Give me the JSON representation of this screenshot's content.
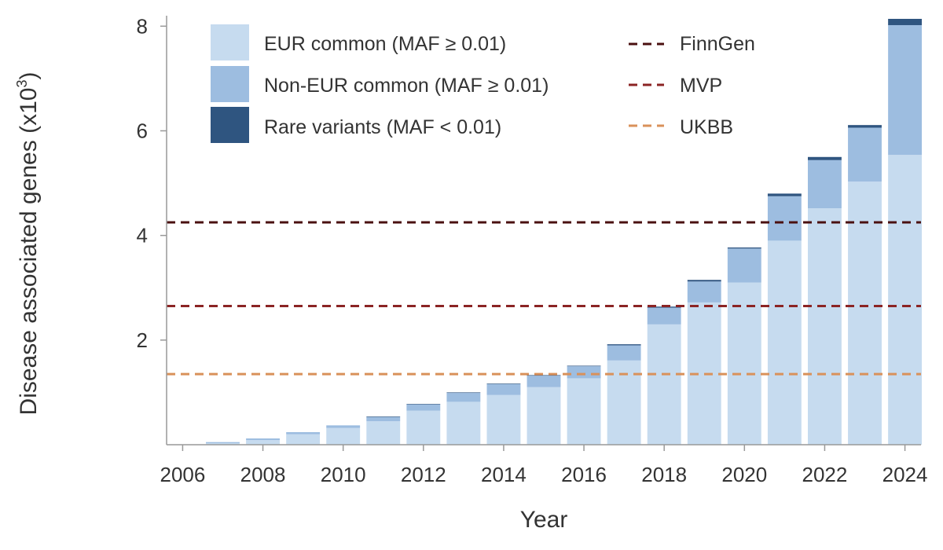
{
  "chart_data": {
    "type": "bar",
    "stacked": true,
    "title": "",
    "xlabel": "Year",
    "ylabel": "Disease associated genes (x10",
    "ylabel_sup": "3",
    "ylabel_close": ")",
    "ylim": [
      0,
      8.2
    ],
    "xlim": [
      2005.6,
      2024.4
    ],
    "x_ticks": [
      "2006",
      "2008",
      "2010",
      "2012",
      "2014",
      "2016",
      "2018",
      "2020",
      "2022",
      "2024"
    ],
    "y_ticks": [
      "2",
      "4",
      "6",
      "8"
    ],
    "categories": [
      2007,
      2008,
      2009,
      2010,
      2011,
      2012,
      2013,
      2014,
      2015,
      2016,
      2017,
      2018,
      2019,
      2020,
      2021,
      2022,
      2023,
      2024
    ],
    "series": [
      {
        "name": "EUR common (MAF ≥ 0.01)",
        "color": "#c6dbef",
        "values": [
          0.03,
          0.09,
          0.2,
          0.32,
          0.45,
          0.65,
          0.82,
          0.95,
          1.1,
          1.27,
          1.61,
          2.3,
          2.72,
          3.1,
          3.9,
          4.52,
          5.03,
          5.54
        ]
      },
      {
        "name": "Non-EUR common (MAF ≥ 0.01)",
        "color": "#9dbde0",
        "values": [
          0.02,
          0.03,
          0.04,
          0.05,
          0.08,
          0.12,
          0.17,
          0.21,
          0.22,
          0.23,
          0.29,
          0.32,
          0.4,
          0.65,
          0.85,
          0.92,
          1.03,
          2.48
        ]
      },
      {
        "name": "Rare variants (MAF < 0.01)",
        "color": "#2f5580",
        "values": [
          0.0,
          0.0,
          0.0,
          0.0,
          0.01,
          0.01,
          0.01,
          0.01,
          0.01,
          0.01,
          0.02,
          0.02,
          0.03,
          0.02,
          0.05,
          0.06,
          0.05,
          0.12
        ]
      }
    ],
    "reference_lines": [
      {
        "name": "FinnGen",
        "value": 4.25,
        "color": "#4a1010"
      },
      {
        "name": "MVP",
        "value": 2.65,
        "color": "#8b2424"
      },
      {
        "name": "UKBB",
        "value": 1.35,
        "color": "#d9915a"
      }
    ],
    "grid": false,
    "legend_position": "top"
  }
}
